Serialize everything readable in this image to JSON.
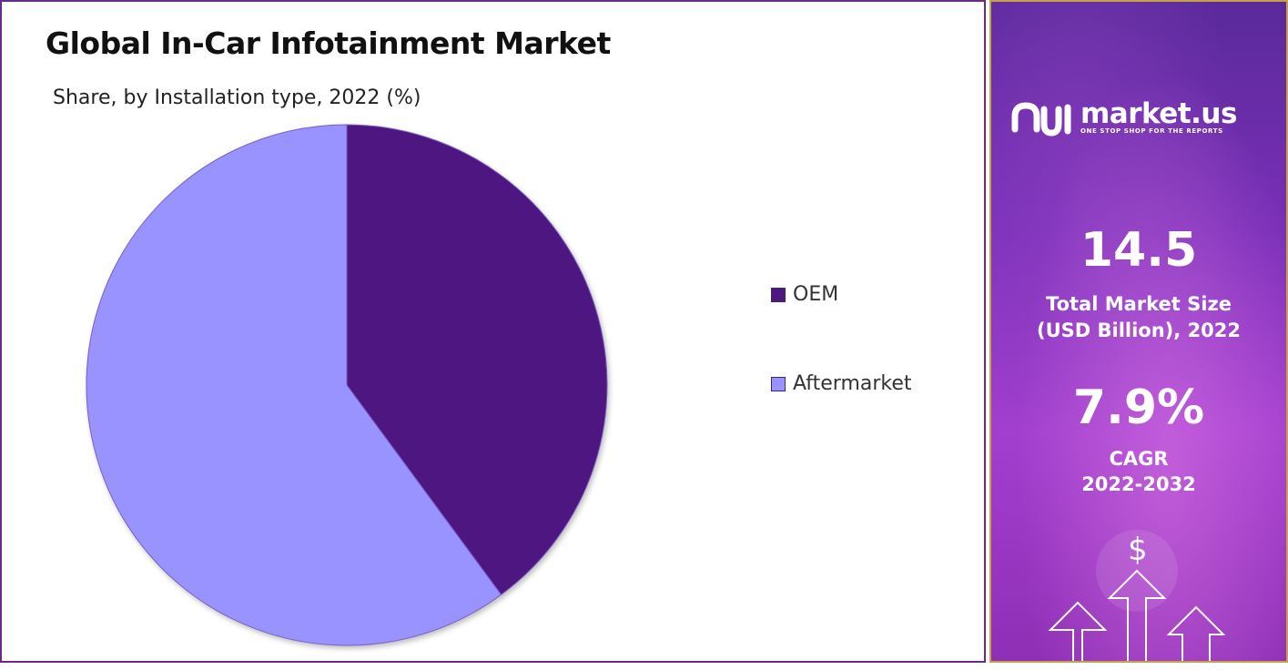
{
  "chart": {
    "title": "Global In-Car Infotainment Market",
    "subtitle": "Share, by Installation type, 2022 (%)"
  },
  "chart_data": {
    "type": "pie",
    "title": "Global In-Car Infotainment Market",
    "subtitle": "Share, by Installation type, 2022 (%)",
    "categories": [
      "OEM",
      "Aftermarket"
    ],
    "values": [
      39.9,
      60.1
    ],
    "colors": [
      "#4e1680",
      "#9893ff"
    ],
    "legend_position": "right"
  },
  "panel": {
    "logo_name": "market.us",
    "logo_tagline": "ONE STOP SHOP FOR THE REPORTS",
    "market_size_value": "14.5",
    "market_size_label_line1": "Total Market Size",
    "market_size_label_line2": "(USD Billion), 2022",
    "cagr_value": "7.9%",
    "cagr_label_line1": "CAGR",
    "cagr_label_line2": "2022-2032",
    "dollar_symbol": "$"
  },
  "colors": {
    "card_border": "#6b2a8a",
    "panel_border": "#c6a14a",
    "panel_primary": "#7a2fb8"
  }
}
